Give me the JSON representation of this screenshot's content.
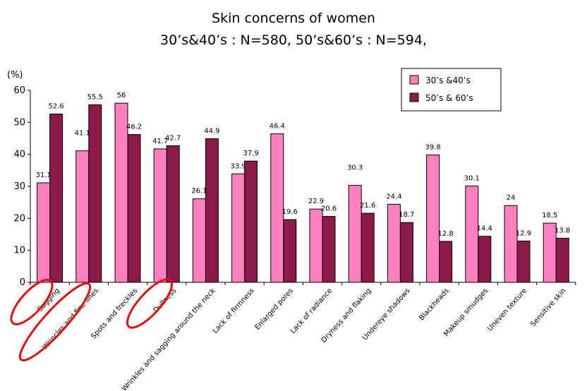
{
  "chart_data": {
    "type": "bar",
    "title": "Skin concerns of women",
    "subtitle": "30’s&40’s : N=580, 50’s&60’s : N=594,",
    "ylabel": "(%)",
    "ylim": [
      0,
      60
    ],
    "yticks": [
      0,
      10,
      20,
      30,
      40,
      50,
      60
    ],
    "grid": false,
    "legend_position": "top-right",
    "categories": [
      "Sagging",
      "Wrincles and fine lines",
      "Spots and freckles",
      "Dullness",
      "Wrinkles and sagging around the neck",
      "Lack of firmness",
      "Enlarged pores",
      "Lack of radiance",
      "Dryness and flaking",
      "Undereye shadows",
      "Blackheads",
      "Makeup smudges",
      "Uneven texture",
      "Sensitive skin"
    ],
    "series": [
      {
        "name": "30’s &40’s",
        "color": "#ff80c0",
        "values": [
          31.1,
          41.1,
          56,
          41.7,
          26.1,
          33.9,
          46.4,
          22.9,
          30.3,
          24.4,
          39.8,
          30.1,
          24,
          18.5
        ]
      },
      {
        "name": "50’s & 60’s",
        "color": "#8b1a4a",
        "values": [
          52.6,
          55.5,
          46.2,
          42.7,
          44.9,
          37.9,
          19.6,
          20.6,
          21.6,
          18.7,
          12.8,
          14.4,
          12.9,
          13.8
        ]
      }
    ],
    "value_labels": {
      "s0": [
        "31.1",
        "41.1",
        "56",
        "41.7",
        "26.1",
        "33.9",
        "46.4",
        "22.9",
        "30.3",
        "24.4",
        "39.8",
        "30.1",
        "24",
        "18.5"
      ],
      "s1": [
        "52.6",
        "55.5",
        "46.2",
        "42.7",
        "44.9",
        "37.9",
        "19.6",
        "20.6",
        "21.6",
        "18.7",
        "12.8",
        "14.4",
        "12.9",
        "13.8"
      ]
    },
    "highlighted_categories": [
      "Sagging",
      "Wrincles and fine lines",
      "Dullness"
    ],
    "highlight_color": "#e01010"
  }
}
